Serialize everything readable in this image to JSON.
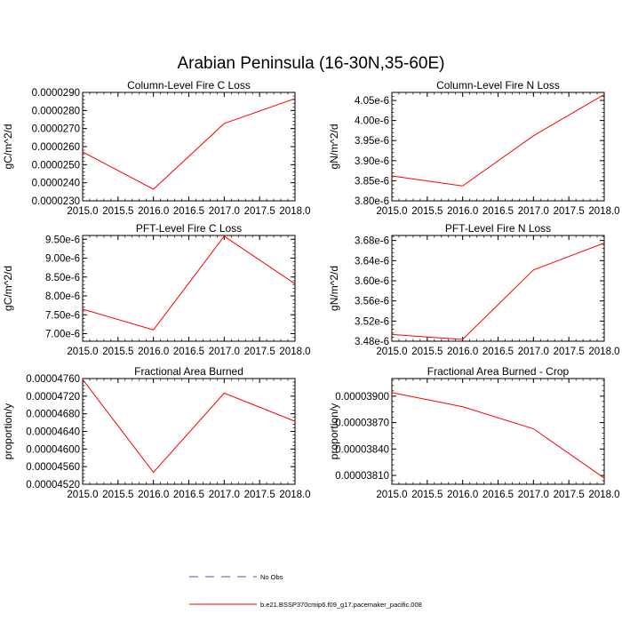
{
  "figure": {
    "title": "Arabian Peninsula (16-30N,35-60E)",
    "series_color": "#ff0000",
    "obs_color": "#5a4fa8",
    "legend": [
      {
        "label": "No Obs",
        "style": "dashed",
        "color": "#5a4fa8"
      },
      {
        "label": "b.e21.BSSP370cmip6.f09_g17.pacemaker_pacific.008",
        "style": "solid",
        "color": "#ff0000"
      }
    ]
  },
  "chart_data": [
    {
      "type": "line",
      "title": "Column-Level Fire C Loss",
      "xlabel": "",
      "ylabel": "gC/m^2/d",
      "xlim": [
        2015.0,
        2018.0
      ],
      "ylim": [
        2.3e-05,
        2.9e-05
      ],
      "xticks": [
        "2015.0",
        "2015.5",
        "2016.0",
        "2016.5",
        "2017.0",
        "2017.5",
        "2018.0"
      ],
      "xtick_values": [
        2015.0,
        2015.5,
        2016.0,
        2016.5,
        2017.0,
        2017.5,
        2018.0
      ],
      "yticks": [
        "0.0000230",
        "0.0000240",
        "0.0000250",
        "0.0000260",
        "0.0000270",
        "0.0000280",
        "0.0000290"
      ],
      "ytick_values": [
        2.3e-05,
        2.4e-05,
        2.5e-05,
        2.6e-05,
        2.7e-05,
        2.8e-05,
        2.9e-05
      ],
      "x": [
        2015,
        2016,
        2017,
        2018
      ],
      "series": [
        {
          "name": "b.e21.BSSP370cmip6.f09_g17.pacemaker_pacific.008",
          "values": [
            2.571e-05,
            2.364e-05,
            2.728e-05,
            2.866e-05
          ]
        }
      ]
    },
    {
      "type": "line",
      "title": "Column-Level Fire N Loss",
      "xlabel": "",
      "ylabel": "gN/m^2/d",
      "xlim": [
        2015.0,
        2018.0
      ],
      "ylim": [
        3.8e-06,
        4.07e-06
      ],
      "xticks": [
        "2015.0",
        "2015.5",
        "2016.0",
        "2016.5",
        "2017.0",
        "2017.5",
        "2018.0"
      ],
      "xtick_values": [
        2015.0,
        2015.5,
        2016.0,
        2016.5,
        2017.0,
        2017.5,
        2018.0
      ],
      "yticks": [
        "3.80e-6",
        "3.85e-6",
        "3.90e-6",
        "3.95e-6",
        "4.00e-6",
        "4.05e-6"
      ],
      "ytick_values": [
        3.8e-06,
        3.85e-06,
        3.9e-06,
        3.95e-06,
        4e-06,
        4.05e-06
      ],
      "x": [
        2015,
        2016,
        2017,
        2018
      ],
      "series": [
        {
          "name": "b.e21.BSSP370cmip6.f09_g17.pacemaker_pacific.008",
          "values": [
            3.862e-06,
            3.837e-06,
            3.962e-06,
            4.065e-06
          ]
        }
      ]
    },
    {
      "type": "line",
      "title": "PFT-Level Fire C Loss",
      "xlabel": "",
      "ylabel": "gC/m^2/d",
      "xlim": [
        2015.0,
        2018.0
      ],
      "ylim": [
        6.8e-06,
        9.6e-06
      ],
      "xticks": [
        "2015.0",
        "2015.5",
        "2016.0",
        "2016.5",
        "2017.0",
        "2017.5",
        "2018.0"
      ],
      "xtick_values": [
        2015.0,
        2015.5,
        2016.0,
        2016.5,
        2017.0,
        2017.5,
        2018.0
      ],
      "yticks": [
        "7.00e-6",
        "7.50e-6",
        "8.00e-6",
        "8.50e-6",
        "9.00e-6",
        "9.50e-6"
      ],
      "ytick_values": [
        7e-06,
        7.5e-06,
        8e-06,
        8.5e-06,
        9e-06,
        9.5e-06
      ],
      "x": [
        2015,
        2016,
        2017,
        2018
      ],
      "series": [
        {
          "name": "b.e21.BSSP370cmip6.f09_g17.pacemaker_pacific.008",
          "values": [
            7.65e-06,
            7.1e-06,
            9.58e-06,
            8.32e-06
          ]
        }
      ]
    },
    {
      "type": "line",
      "title": "PFT-Level Fire N Loss",
      "xlabel": "",
      "ylabel": "gN/m^2/d",
      "xlim": [
        2015.0,
        2018.0
      ],
      "ylim": [
        3.48e-06,
        3.69e-06
      ],
      "xticks": [
        "2015.0",
        "2015.5",
        "2016.0",
        "2016.5",
        "2017.0",
        "2017.5",
        "2018.0"
      ],
      "xtick_values": [
        2015.0,
        2015.5,
        2016.0,
        2016.5,
        2017.0,
        2017.5,
        2018.0
      ],
      "yticks": [
        "3.48e-6",
        "3.52e-6",
        "3.56e-6",
        "3.60e-6",
        "3.64e-6",
        "3.68e-6"
      ],
      "ytick_values": [
        3.48e-06,
        3.52e-06,
        3.56e-06,
        3.6e-06,
        3.64e-06,
        3.68e-06
      ],
      "x": [
        2015,
        2016,
        2017,
        2018
      ],
      "series": [
        {
          "name": "b.e21.BSSP370cmip6.f09_g17.pacemaker_pacific.008",
          "values": [
            3.4935e-06,
            3.4835e-06,
            3.6215e-06,
            3.675e-06
          ]
        }
      ]
    },
    {
      "type": "line",
      "title": "Fractional Area Burned",
      "xlabel": "",
      "ylabel": "proportion/y",
      "xlim": [
        2015.0,
        2018.0
      ],
      "ylim": [
        4.52e-05,
        4.76e-05
      ],
      "xticks": [
        "2015.0",
        "2015.5",
        "2016.0",
        "2016.5",
        "2017.0",
        "2017.5",
        "2018.0"
      ],
      "xtick_values": [
        2015.0,
        2015.5,
        2016.0,
        2016.5,
        2017.0,
        2017.5,
        2018.0
      ],
      "yticks": [
        "0.00004520",
        "0.00004560",
        "0.00004600",
        "0.00004640",
        "0.00004680",
        "0.00004720",
        "0.00004760"
      ],
      "ytick_values": [
        4.52e-05,
        4.56e-05,
        4.6e-05,
        4.64e-05,
        4.68e-05,
        4.72e-05,
        4.76e-05
      ],
      "x": [
        2015,
        2016,
        2017,
        2018
      ],
      "series": [
        {
          "name": "b.e21.BSSP370cmip6.f09_g17.pacemaker_pacific.008",
          "values": [
            4.758e-05,
            4.547e-05,
            4.727e-05,
            4.663e-05
          ]
        }
      ]
    },
    {
      "type": "line",
      "title": "Fractional Area Burned - Crop",
      "xlabel": "",
      "ylabel": "proportion/y",
      "xlim": [
        2015.0,
        2018.0
      ],
      "ylim": [
        3.8e-05,
        3.92e-05
      ],
      "xticks": [
        "2015.0",
        "2015.5",
        "2016.0",
        "2016.5",
        "2017.0",
        "2017.5",
        "2018.0"
      ],
      "xtick_values": [
        2015.0,
        2015.5,
        2016.0,
        2016.5,
        2017.0,
        2017.5,
        2018.0
      ],
      "yticks": [
        "0.00003810",
        "0.00003840",
        "0.00003870",
        "0.00003900"
      ],
      "ytick_values": [
        3.81e-05,
        3.84e-05,
        3.87e-05,
        3.9e-05
      ],
      "x": [
        2015,
        2016,
        2017,
        2018
      ],
      "series": [
        {
          "name": "b.e21.BSSP370cmip6.f09_g17.pacemaker_pacific.008",
          "values": [
            3.904e-05,
            3.888e-05,
            3.863e-05,
            3.807e-05
          ]
        }
      ]
    }
  ]
}
